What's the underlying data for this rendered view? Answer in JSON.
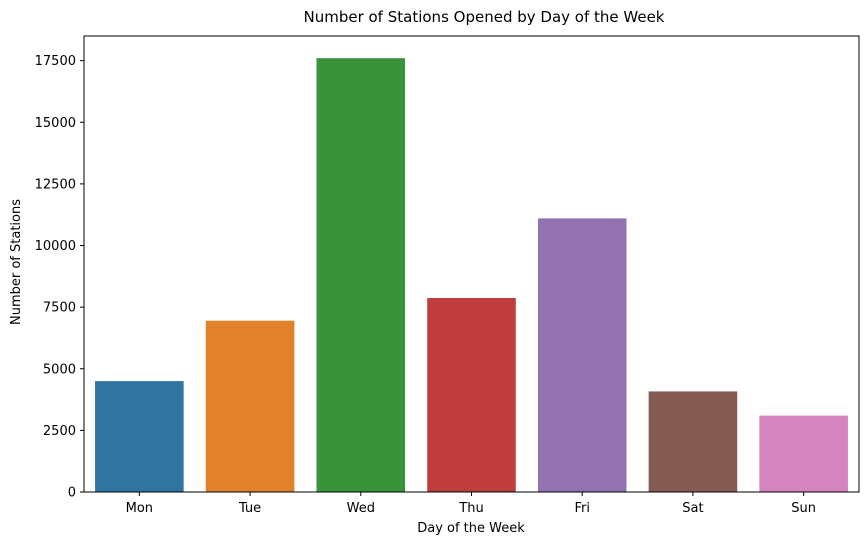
{
  "chart_data": {
    "type": "bar",
    "title": "Number of Stations Opened by Day of the Week",
    "xlabel": "Day of the Week",
    "ylabel": "Number of Stations",
    "categories": [
      "Mon",
      "Tue",
      "Wed",
      "Thu",
      "Fri",
      "Sat",
      "Sun"
    ],
    "values": [
      4500,
      6950,
      17600,
      7870,
      11100,
      4080,
      3100
    ],
    "colors": [
      "#3274a1",
      "#e1812c",
      "#3a923a",
      "#c03d3e",
      "#9372b2",
      "#845b53",
      "#d684bd"
    ],
    "ylim": [
      0,
      18500
    ],
    "yticks": [
      0,
      2500,
      5000,
      7500,
      10000,
      12500,
      15000,
      17500
    ],
    "grid": false,
    "legend": "none"
  }
}
